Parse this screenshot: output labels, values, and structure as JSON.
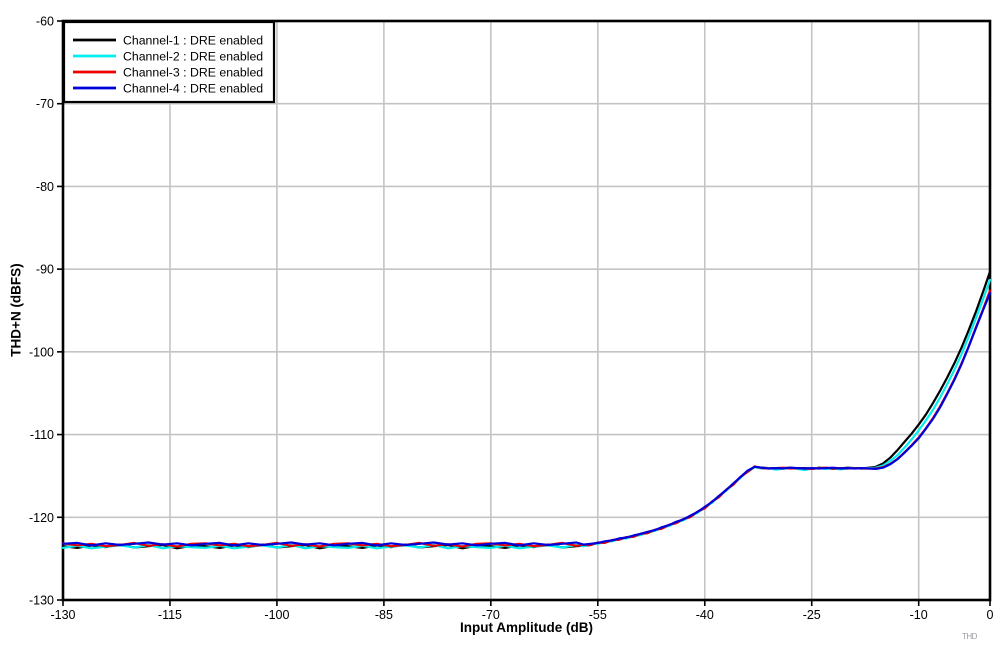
{
  "figure": {
    "watermark": "THD",
    "background": "#ffffff"
  },
  "chart_data": {
    "type": "line",
    "title": "",
    "xlabel": "Input Amplitude (dB)",
    "ylabel": "THD+N (dBFS)",
    "xlim": [
      -130,
      0
    ],
    "ylim": [
      -130,
      -60
    ],
    "x_ticks": [
      -130,
      -115,
      -100,
      -85,
      -70,
      -55,
      -40,
      -25,
      -10,
      0
    ],
    "y_ticks": [
      -60,
      -70,
      -80,
      -90,
      -100,
      -110,
      -120,
      -130
    ],
    "grid": true,
    "grid_color": "#c4c4c4",
    "axis_color": "#000000",
    "legend_position": "top-left",
    "x": [
      -130,
      -128,
      -126,
      -124,
      -122,
      -120,
      -118,
      -116,
      -114,
      -112,
      -110,
      -108,
      -106,
      -104,
      -102,
      -100,
      -98,
      -96,
      -94,
      -92,
      -90,
      -88,
      -86,
      -84,
      -82,
      -80,
      -78,
      -76,
      -74,
      -72,
      -70,
      -68,
      -66,
      -64,
      -62,
      -60,
      -58,
      -57,
      -56,
      -55,
      -54,
      -53,
      -52,
      -51,
      -50,
      -49,
      -48,
      -47,
      -46,
      -45,
      -44,
      -43,
      -42,
      -41,
      -40,
      -39,
      -38,
      -37,
      -36,
      -35,
      -34,
      -33,
      -32,
      -31,
      -30,
      -29,
      -28,
      -27,
      -26,
      -25,
      -24,
      -23,
      -22,
      -21,
      -20,
      -19,
      -18,
      -17,
      -16,
      -15,
      -14,
      -13,
      -12,
      -11,
      -10,
      -9,
      -8,
      -7,
      -6,
      -5,
      -4,
      -3,
      -2,
      -1,
      0
    ],
    "series": [
      {
        "name": "Channel-1 : DRE enabled",
        "color": "#000000",
        "values": [
          -123.5,
          -123.7,
          -123.4,
          -123.6,
          -123.3,
          -123.65,
          -123.5,
          -123.35,
          -123.75,
          -123.45,
          -123.5,
          -123.7,
          -123.4,
          -123.6,
          -123.3,
          -123.65,
          -123.5,
          -123.35,
          -123.75,
          -123.45,
          -123.5,
          -123.7,
          -123.4,
          -123.6,
          -123.3,
          -123.65,
          -123.5,
          -123.35,
          -123.75,
          -123.45,
          -123.5,
          -123.7,
          -123.4,
          -123.6,
          -123.3,
          -123.65,
          -123.5,
          -123.45,
          -123.35,
          -123.1,
          -123.05,
          -122.8,
          -122.7,
          -122.45,
          -122.35,
          -122.05,
          -121.9,
          -121.55,
          -121.35,
          -120.95,
          -120.7,
          -120.25,
          -119.95,
          -119.35,
          -118.9,
          -118.15,
          -117.55,
          -116.7,
          -116.05,
          -115.15,
          -114.5,
          -113.9,
          -114.0,
          -114.05,
          -114.1,
          -114.05,
          -114.0,
          -114.1,
          -114.05,
          -114.15,
          -114.0,
          -114.05,
          -114.15,
          -114.1,
          -114.0,
          -114.05,
          -114.1,
          -114.0,
          -113.9,
          -113.5,
          -112.8,
          -111.9,
          -110.9,
          -109.9,
          -108.8,
          -107.6,
          -106.2,
          -104.7,
          -103.1,
          -101.4,
          -99.5,
          -97.4,
          -95.2,
          -92.8,
          -90.3
        ]
      },
      {
        "name": "Channel-2 : DRE enabled",
        "color": "#00eeee",
        "values": [
          -123.7,
          -123.45,
          -123.75,
          -123.55,
          -123.4,
          -123.65,
          -123.35,
          -123.75,
          -123.5,
          -123.6,
          -123.7,
          -123.45,
          -123.75,
          -123.55,
          -123.4,
          -123.65,
          -123.35,
          -123.75,
          -123.5,
          -123.6,
          -123.7,
          -123.45,
          -123.75,
          -123.55,
          -123.4,
          -123.65,
          -123.35,
          -123.75,
          -123.5,
          -123.6,
          -123.7,
          -123.45,
          -123.75,
          -123.55,
          -123.4,
          -123.65,
          -123.35,
          -123.5,
          -123.25,
          -123.2,
          -122.95,
          -122.9,
          -122.6,
          -122.55,
          -122.25,
          -122.15,
          -121.8,
          -121.65,
          -121.25,
          -121.05,
          -120.6,
          -120.35,
          -119.85,
          -119.45,
          -118.8,
          -118.25,
          -117.45,
          -116.8,
          -115.95,
          -115.25,
          -114.4,
          -113.95,
          -114.1,
          -114.05,
          -114.25,
          -114.1,
          -114.05,
          -114.15,
          -114.3,
          -114.1,
          -114.05,
          -114.15,
          -114.1,
          -114.2,
          -114.1,
          -114.05,
          -114.1,
          -114.05,
          -114.0,
          -113.75,
          -113.2,
          -112.5,
          -111.6,
          -110.6,
          -109.5,
          -108.3,
          -107.0,
          -105.5,
          -103.9,
          -102.2,
          -100.3,
          -98.2,
          -96.0,
          -93.7,
          -91.3
        ]
      },
      {
        "name": "Channel-3 : DRE enabled",
        "color": "#ee0000",
        "values": [
          -123.15,
          -123.4,
          -123.2,
          -123.5,
          -123.35,
          -123.1,
          -123.45,
          -123.25,
          -123.55,
          -123.2,
          -123.15,
          -123.4,
          -123.2,
          -123.5,
          -123.35,
          -123.1,
          -123.45,
          -123.25,
          -123.55,
          -123.2,
          -123.15,
          -123.4,
          -123.2,
          -123.5,
          -123.35,
          -123.1,
          -123.45,
          -123.25,
          -123.55,
          -123.2,
          -123.15,
          -123.4,
          -123.2,
          -123.5,
          -123.35,
          -123.1,
          -123.45,
          -123.3,
          -123.35,
          -123.05,
          -123.1,
          -122.75,
          -122.7,
          -122.4,
          -122.35,
          -122.0,
          -121.9,
          -121.5,
          -121.35,
          -120.9,
          -120.7,
          -120.2,
          -119.95,
          -119.3,
          -118.9,
          -118.1,
          -117.55,
          -116.65,
          -116.05,
          -115.1,
          -114.5,
          -113.85,
          -114.05,
          -114.1,
          -114.05,
          -114.0,
          -114.1,
          -114.05,
          -114.1,
          -114.15,
          -114.05,
          -114.0,
          -114.1,
          -114.05,
          -114.1,
          -114.05,
          -114.1,
          -114.1,
          -114.1,
          -113.95,
          -113.55,
          -112.95,
          -112.15,
          -111.3,
          -110.35,
          -109.25,
          -108.0,
          -106.6,
          -105.0,
          -103.3,
          -101.4,
          -99.35,
          -97.1,
          -94.9,
          -92.6
        ]
      },
      {
        "name": "Channel-4 : DRE enabled",
        "color": "#0000dd",
        "values": [
          -123.2,
          -123.1,
          -123.4,
          -123.15,
          -123.35,
          -123.2,
          -123.05,
          -123.3,
          -123.15,
          -123.4,
          -123.2,
          -123.1,
          -123.4,
          -123.15,
          -123.35,
          -123.2,
          -123.05,
          -123.3,
          -123.15,
          -123.4,
          -123.2,
          -123.1,
          -123.4,
          -123.15,
          -123.35,
          -123.2,
          -123.05,
          -123.3,
          -123.15,
          -123.4,
          -123.2,
          -123.1,
          -123.4,
          -123.15,
          -123.35,
          -123.2,
          -123.05,
          -123.3,
          -123.2,
          -123.1,
          -122.9,
          -122.8,
          -122.55,
          -122.45,
          -122.2,
          -122.0,
          -121.75,
          -121.55,
          -121.2,
          -120.95,
          -120.55,
          -120.25,
          -119.8,
          -119.35,
          -118.75,
          -118.15,
          -117.4,
          -116.7,
          -115.9,
          -115.15,
          -114.35,
          -113.9,
          -114.0,
          -114.1,
          -114.05,
          -114.1,
          -114.0,
          -114.05,
          -114.1,
          -114.05,
          -114.1,
          -114.05,
          -114.0,
          -114.1,
          -114.05,
          -114.1,
          -114.05,
          -114.1,
          -114.15,
          -114.0,
          -113.6,
          -113.0,
          -112.2,
          -111.35,
          -110.45,
          -109.3,
          -108.1,
          -106.7,
          -105.1,
          -103.4,
          -101.5,
          -99.4,
          -97.2,
          -95.0,
          -92.9
        ]
      }
    ]
  }
}
